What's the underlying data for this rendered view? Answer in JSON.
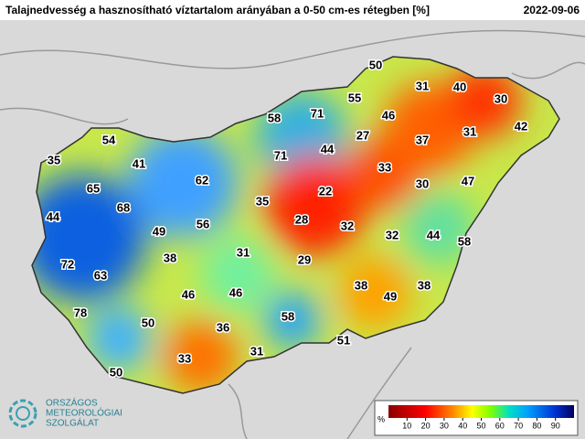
{
  "header": {
    "title": "Talajnedvesség a hasznosítható víztartalom arányában a 0-50 cm-es rétegben [%]",
    "date": "2022-09-06"
  },
  "labels": [
    50,
    31,
    40,
    30,
    42,
    55,
    71,
    58,
    46,
    27,
    37,
    31,
    54,
    44,
    71,
    33,
    35,
    41,
    62,
    30,
    47,
    65,
    22,
    35,
    68,
    44,
    28,
    56,
    49,
    32,
    32,
    44,
    58,
    31,
    38,
    29,
    72,
    63,
    38,
    49,
    38,
    46,
    46,
    78,
    58,
    50,
    36,
    51,
    31,
    33,
    50
  ],
  "colorbar": {
    "label": "%",
    "lim": [
      0,
      100
    ],
    "ticks": [
      10,
      20,
      30,
      40,
      50,
      60,
      70,
      80,
      90
    ]
  },
  "logo": {
    "line1": "ORSZÁGOS",
    "line2": "METEOROLÓGIAI",
    "line3": "SZOLGÁLAT"
  }
}
